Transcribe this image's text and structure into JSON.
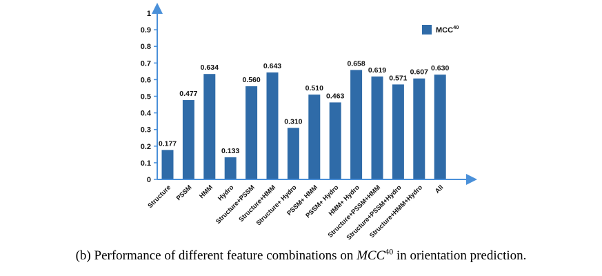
{
  "chart_data": {
    "type": "bar",
    "categories": [
      "Structure",
      "PSSM",
      "HMM",
      "Hydro",
      "Structure+PSSM",
      "Structure+HMM",
      "Structure+ Hydro",
      "PSSM+ HMM",
      "PSSM+ Hydro",
      "HMM+ Hydro",
      "Structure+PSSM+HMM",
      "Structure+PSSM+Hydro",
      "Structure+HMM+Hydro",
      "All"
    ],
    "series": [
      {
        "name": "MCC40",
        "values": [
          0.177,
          0.477,
          0.634,
          0.133,
          0.56,
          0.643,
          0.31,
          0.51,
          0.463,
          0.658,
          0.619,
          0.571,
          0.607,
          0.63
        ]
      }
    ],
    "value_labels": [
      "0.177",
      "0.477",
      "0.634",
      "0.133",
      "0.560",
      "0.643",
      "0.310",
      "0.510",
      "0.463",
      "0.658",
      "0.619",
      "0.571",
      "0.607",
      "0.630"
    ],
    "y_ticks": [
      "0",
      "0.1",
      "0.2",
      "0.3",
      "0.4",
      "0.5",
      "0.6",
      "0.7",
      "0.8",
      "0.9",
      "1"
    ],
    "ylim": [
      0,
      1
    ],
    "grid": false,
    "legend": {
      "placement": "top-right",
      "main": "MCC",
      "sup": "40"
    },
    "bar_color": "#2f6ba8",
    "axis_color": "#4a90d9"
  },
  "caption": {
    "prefix": "(b) Performance of different feature combinations on ",
    "metric": "MCC",
    "metric_sup": "40",
    "suffix": " in orientation prediction."
  }
}
